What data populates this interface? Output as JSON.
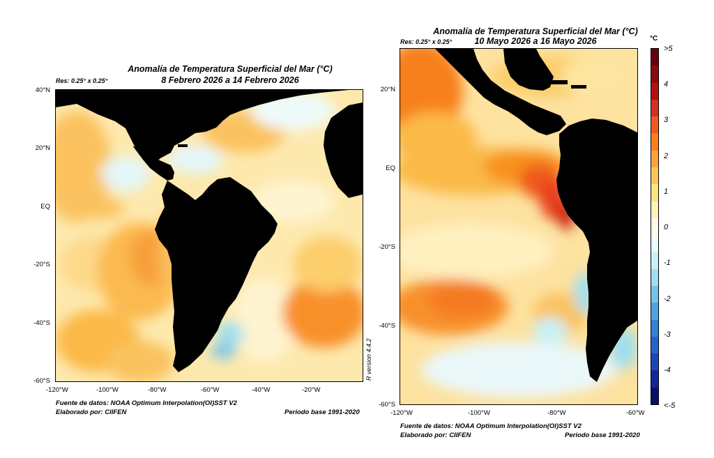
{
  "panel_left": {
    "title": "Anomalía de Temperatura Superficial del Mar (°C)",
    "subtitle": "8 Febrero 2026 a 14 Febrero 2026",
    "resolution": "Res: 0.25° x 0.25°",
    "y_ticks": [
      "40°N",
      "20°N",
      "EQ",
      "-20°S",
      "-40°S",
      "-60°S"
    ],
    "x_ticks": [
      "-120°W",
      "-100°W",
      "-80°W",
      "-60°W",
      "-40°W",
      "-20°W"
    ],
    "source": "Fuente de datos: NOAA Optimum Interpolation(OI)SST V2",
    "author": "Elaborado por: CIIFEN",
    "base_period": "Periodo base 1991-2020",
    "r_version": "R version 4.4.2"
  },
  "panel_right": {
    "title": "Anomalía de Temperatura Superficial del Mar (°C)",
    "subtitle": "10 Mayo 2026 a 16 Mayo 2026",
    "resolution": "Res: 0.25° x 0.25°",
    "y_ticks": [
      "20°N",
      "EQ",
      "-20°S",
      "-40°S",
      "-60°S"
    ],
    "x_ticks": [
      "-120°W",
      "-100°W",
      "-80°W",
      "-60°W"
    ],
    "source": "Fuente de datos: NOAA Optimum Interpolation(OI)SST V2",
    "author": "Elaborado por: CIIFEN",
    "base_period": "Periodo base 1991-2020"
  },
  "colorbar": {
    "unit": "°C",
    "labels": [
      ">5",
      "4",
      "3",
      "2",
      "1",
      "0",
      "-1",
      "-2",
      "-3",
      "-4",
      "<-5"
    ],
    "colors": [
      "#67000d",
      "#8b0a0c",
      "#b3130e",
      "#d7301f",
      "#ef5a1f",
      "#f7801c",
      "#fba23a",
      "#fcc45a",
      "#fde27f",
      "#fff2b8",
      "#fffbe8",
      "#ecfbfb",
      "#c9f0f5",
      "#9fdfef",
      "#73c3ea",
      "#4ea4e3",
      "#3182d8",
      "#2464cc",
      "#1a46b8",
      "#11289c",
      "#08106e"
    ]
  }
}
